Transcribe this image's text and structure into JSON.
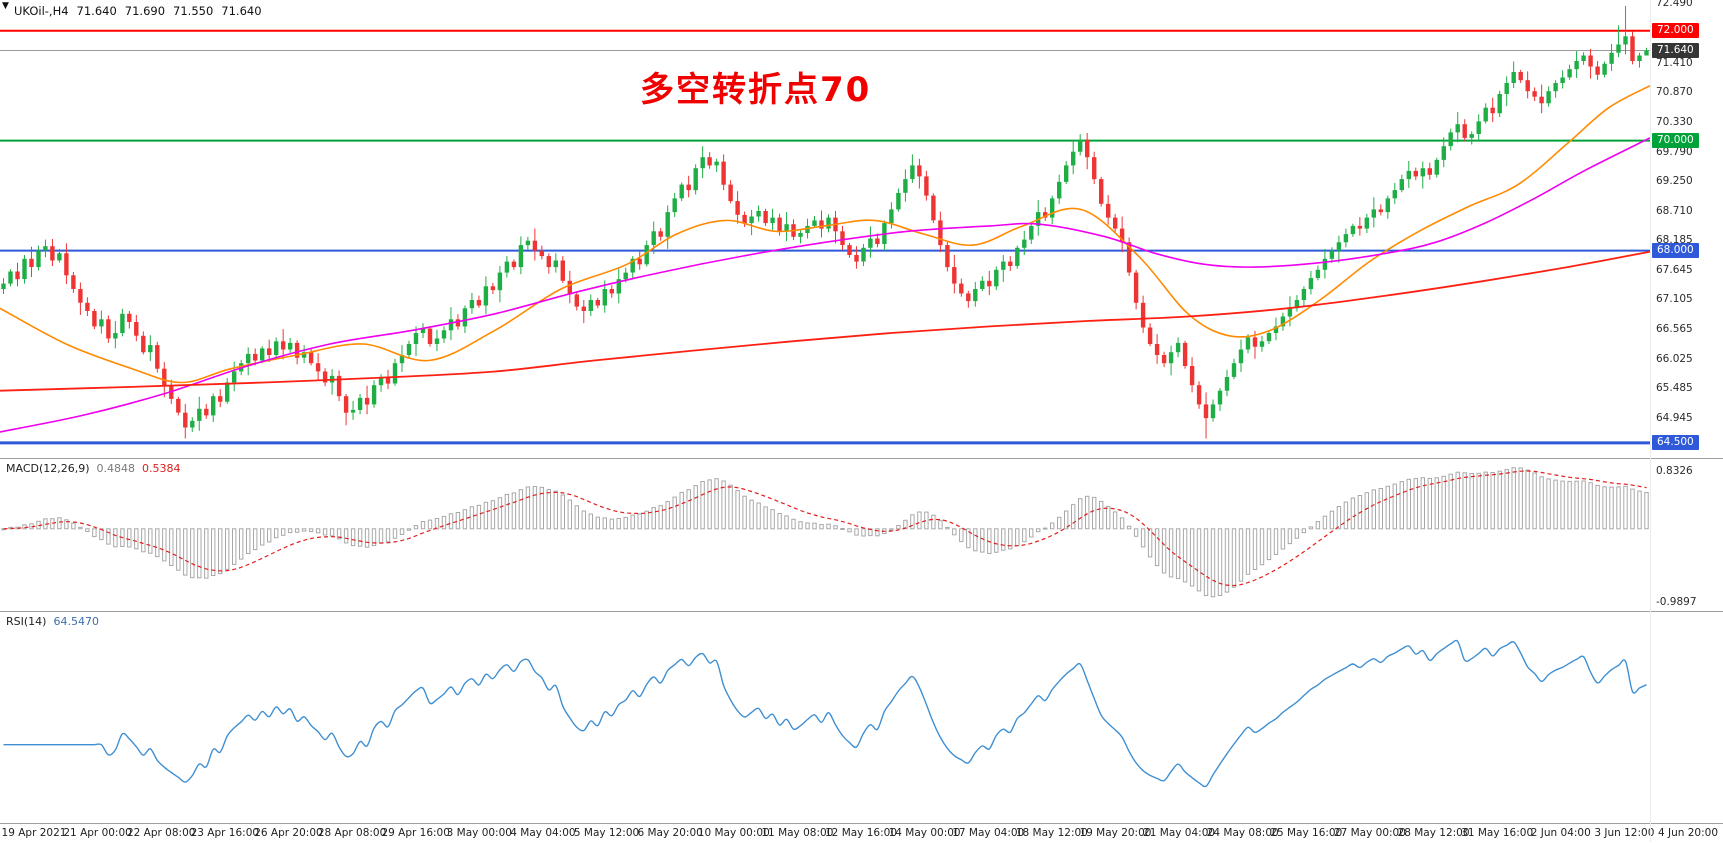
{
  "icons": {
    "shift_marker": "▼"
  },
  "quote_bar": {
    "symbol_period": "UKOil-,H4",
    "open": "71.640",
    "high": "71.690",
    "low": "71.550",
    "close": "71.640"
  },
  "annotation": {
    "text": "多空转折点70",
    "color": "#f10000"
  },
  "chart_data": {
    "type": "candlestick",
    "title": "UKOil- H4",
    "ylim": [
      64.28,
      72.56
    ],
    "grid": false,
    "axis_ticks": [
      "72.490",
      "71.410",
      "70.870",
      "70.330",
      "69.790",
      "69.250",
      "68.710",
      "68.185",
      "67.645",
      "67.105",
      "66.565",
      "66.025",
      "65.485",
      "64.945"
    ],
    "badges": [
      {
        "value": 72.0,
        "label": "72.000",
        "color": "#ff0000"
      },
      {
        "value": 71.64,
        "label": "71.640",
        "color": "#353535"
      },
      {
        "value": 70.0,
        "label": "70.000",
        "color": "#00a33a"
      },
      {
        "value": 68.0,
        "label": "68.000",
        "color": "#2e59d9"
      },
      {
        "value": 64.5,
        "label": "64.500",
        "color": "#2e59d9"
      }
    ],
    "levels": [
      {
        "value": 72.0,
        "color": "#ff0000",
        "width": 2
      },
      {
        "value": 70.0,
        "color": "#00a33a",
        "width": 2
      },
      {
        "value": 68.0,
        "color": "#2e59d9",
        "width": 2
      },
      {
        "value": 64.5,
        "color": "#2e59d9",
        "width": 3
      }
    ],
    "current_price": {
      "value": 71.64,
      "color": "#9a9a9a"
    },
    "candles": {
      "up_color": "#1fae46",
      "down_color": "#ef3434",
      "open_first": 67.3,
      "closes": [
        67.4,
        67.62,
        67.48,
        67.85,
        67.7,
        68.0,
        68.08,
        67.82,
        67.95,
        67.55,
        67.3,
        67.05,
        66.9,
        66.62,
        66.75,
        66.4,
        66.5,
        66.85,
        66.7,
        66.45,
        66.15,
        66.28,
        65.85,
        65.55,
        65.3,
        65.05,
        64.78,
        64.9,
        65.12,
        65.0,
        65.35,
        65.25,
        65.6,
        65.8,
        65.95,
        66.12,
        66.0,
        66.22,
        66.1,
        66.35,
        66.2,
        66.32,
        66.05,
        66.15,
        65.95,
        65.8,
        65.6,
        65.72,
        65.35,
        65.05,
        65.1,
        65.32,
        65.2,
        65.55,
        65.7,
        65.58,
        65.95,
        66.1,
        66.3,
        66.5,
        66.58,
        66.3,
        66.4,
        66.55,
        66.75,
        66.62,
        66.95,
        67.1,
        67.0,
        67.35,
        67.28,
        67.6,
        67.8,
        67.7,
        68.1,
        68.18,
        68.0,
        67.9,
        67.7,
        67.82,
        67.45,
        67.2,
        66.98,
        66.9,
        67.1,
        67.0,
        67.3,
        67.22,
        67.48,
        67.6,
        67.85,
        67.75,
        68.1,
        68.35,
        68.25,
        68.7,
        68.95,
        69.2,
        69.1,
        69.5,
        69.7,
        69.55,
        69.62,
        69.2,
        68.9,
        68.65,
        68.5,
        68.62,
        68.72,
        68.5,
        68.6,
        68.35,
        68.48,
        68.25,
        68.32,
        68.45,
        68.55,
        68.4,
        68.6,
        68.35,
        68.1,
        67.92,
        67.8,
        68.05,
        68.22,
        68.12,
        68.5,
        68.75,
        69.05,
        69.3,
        69.55,
        69.35,
        69.0,
        68.55,
        68.1,
        67.7,
        67.4,
        67.22,
        67.08,
        67.3,
        67.45,
        67.35,
        67.65,
        67.8,
        67.72,
        68.05,
        68.2,
        68.45,
        68.7,
        68.6,
        68.95,
        69.25,
        69.55,
        69.8,
        70.02,
        69.7,
        69.3,
        68.85,
        68.6,
        68.4,
        68.15,
        67.6,
        67.05,
        66.6,
        66.3,
        66.1,
        65.95,
        66.15,
        66.32,
        65.9,
        65.55,
        65.2,
        64.95,
        65.2,
        65.45,
        65.7,
        65.95,
        66.2,
        66.42,
        66.25,
        66.35,
        66.5,
        66.62,
        66.8,
        66.95,
        67.1,
        67.3,
        67.5,
        67.65,
        67.85,
        68.0,
        68.15,
        68.3,
        68.45,
        68.4,
        68.6,
        68.75,
        68.7,
        68.95,
        69.1,
        69.3,
        69.45,
        69.35,
        69.5,
        69.38,
        69.65,
        69.9,
        70.15,
        70.3,
        70.05,
        70.12,
        70.35,
        70.6,
        70.5,
        70.85,
        71.05,
        71.25,
        71.1,
        70.9,
        70.8,
        70.68,
        70.9,
        71.05,
        71.15,
        71.3,
        71.45,
        71.55,
        71.35,
        71.2,
        71.4,
        71.6,
        71.75,
        71.9,
        71.45,
        71.55,
        71.64
      ],
      "wick_pattern": [
        0.1,
        0.04,
        0.16,
        0.07,
        0.22,
        0.09,
        0.05,
        0.13,
        0.08,
        0.18,
        0.06,
        0.12
      ],
      "wick_overrides": [
        {
          "i": 6,
          "high": 68.2
        },
        {
          "i": 26,
          "low": 64.58
        },
        {
          "i": 49,
          "low": 64.82
        },
        {
          "i": 100,
          "high": 69.9
        },
        {
          "i": 130,
          "high": 69.75
        },
        {
          "i": 154,
          "high": 70.12
        },
        {
          "i": 172,
          "low": 64.58
        },
        {
          "i": 216,
          "high": 71.44
        },
        {
          "i": 231,
          "high": 72.1
        },
        {
          "i": 232,
          "high": 72.45
        },
        {
          "i": 235,
          "high": 71.69,
          "low": 71.55
        }
      ]
    },
    "moving_averages": [
      {
        "name": "ma-fast-orange",
        "color": "#ff8a00",
        "width": 1.6,
        "points": [
          [
            0.0,
            66.95
          ],
          [
            0.04,
            66.3
          ],
          [
            0.08,
            65.85
          ],
          [
            0.11,
            65.6
          ],
          [
            0.14,
            65.85
          ],
          [
            0.18,
            66.1
          ],
          [
            0.22,
            66.3
          ],
          [
            0.26,
            66.0
          ],
          [
            0.3,
            66.55
          ],
          [
            0.34,
            67.3
          ],
          [
            0.38,
            67.75
          ],
          [
            0.41,
            68.3
          ],
          [
            0.44,
            68.55
          ],
          [
            0.47,
            68.35
          ],
          [
            0.5,
            68.45
          ],
          [
            0.53,
            68.55
          ],
          [
            0.56,
            68.3
          ],
          [
            0.59,
            68.1
          ],
          [
            0.62,
            68.45
          ],
          [
            0.655,
            68.75
          ],
          [
            0.69,
            67.9
          ],
          [
            0.72,
            66.85
          ],
          [
            0.745,
            66.45
          ],
          [
            0.77,
            66.55
          ],
          [
            0.8,
            67.1
          ],
          [
            0.83,
            67.8
          ],
          [
            0.86,
            68.35
          ],
          [
            0.89,
            68.8
          ],
          [
            0.92,
            69.2
          ],
          [
            0.95,
            69.95
          ],
          [
            0.975,
            70.6
          ],
          [
            1.0,
            71.0
          ]
        ]
      },
      {
        "name": "ma-mid-magenta",
        "color": "#f000f0",
        "width": 1.6,
        "points": [
          [
            0.0,
            64.7
          ],
          [
            0.05,
            65.0
          ],
          [
            0.1,
            65.4
          ],
          [
            0.15,
            65.9
          ],
          [
            0.2,
            66.3
          ],
          [
            0.25,
            66.55
          ],
          [
            0.3,
            66.85
          ],
          [
            0.35,
            67.25
          ],
          [
            0.4,
            67.6
          ],
          [
            0.45,
            67.9
          ],
          [
            0.5,
            68.15
          ],
          [
            0.55,
            68.35
          ],
          [
            0.6,
            68.45
          ],
          [
            0.63,
            68.48
          ],
          [
            0.67,
            68.25
          ],
          [
            0.7,
            67.95
          ],
          [
            0.73,
            67.75
          ],
          [
            0.76,
            67.7
          ],
          [
            0.8,
            67.78
          ],
          [
            0.84,
            67.95
          ],
          [
            0.87,
            68.15
          ],
          [
            0.9,
            68.5
          ],
          [
            0.93,
            68.95
          ],
          [
            0.96,
            69.45
          ],
          [
            1.0,
            70.05
          ]
        ]
      },
      {
        "name": "ma-slow-red",
        "color": "#ff2014",
        "width": 1.8,
        "points": [
          [
            0.0,
            65.45
          ],
          [
            0.08,
            65.52
          ],
          [
            0.16,
            65.6
          ],
          [
            0.24,
            65.7
          ],
          [
            0.3,
            65.8
          ],
          [
            0.36,
            66.0
          ],
          [
            0.42,
            66.18
          ],
          [
            0.48,
            66.35
          ],
          [
            0.54,
            66.5
          ],
          [
            0.6,
            66.62
          ],
          [
            0.66,
            66.72
          ],
          [
            0.72,
            66.8
          ],
          [
            0.78,
            66.95
          ],
          [
            0.84,
            67.18
          ],
          [
            0.9,
            67.45
          ],
          [
            0.95,
            67.7
          ],
          [
            1.0,
            67.98
          ]
        ]
      }
    ]
  },
  "macd_panel": {
    "label": "MACD(12,26,9)",
    "value_main": "0.4848",
    "value_signal": "0.5384",
    "axis_max": "0.8326",
    "axis_min": "-0.9897",
    "ylim": [
      -0.9897,
      0.8326
    ],
    "params": {
      "fast": 12,
      "slow": 26,
      "signal": 9
    },
    "bar_color": "#a8a8a8",
    "signal_color": "#e02020"
  },
  "rsi_panel": {
    "label": "RSI(14)",
    "value": "64.5470",
    "period": 14,
    "line_color": "#3f8fd2",
    "ylim": [
      10,
      92
    ]
  },
  "time_axis": {
    "labels": [
      "19 Apr 2021",
      "21 Apr 00:00",
      "22 Apr 08:00",
      "23 Apr 16:00",
      "26 Apr 20:00",
      "28 Apr 08:00",
      "29 Apr 16:00",
      "3 May 00:00",
      "4 May 04:00",
      "5 May 12:00",
      "6 May 20:00",
      "10 May 00:00",
      "11 May 08:00",
      "12 May 16:00",
      "14 May 00:00",
      "17 May 04:00",
      "18 May 12:00",
      "19 May 20:00",
      "21 May 04:00",
      "24 May 08:00",
      "25 May 16:00",
      "27 May 00:00",
      "28 May 12:00",
      "31 May 16:00",
      "2 Jun 04:00",
      "3 Jun 12:00",
      "4 Jun 20:00"
    ]
  }
}
